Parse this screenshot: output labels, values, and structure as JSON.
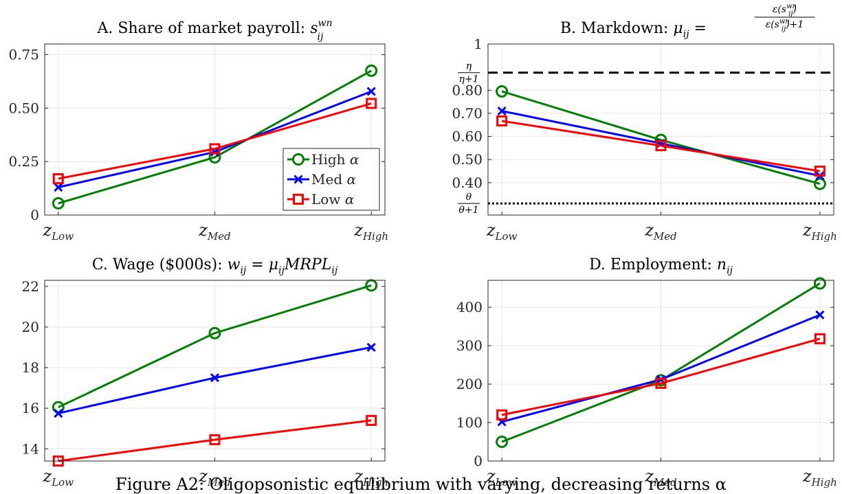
{
  "caption": "Figure A2: Oligopsonistic equilibrium with varying, decreasing returns α",
  "chart_data": [
    {
      "id": "A",
      "type": "line",
      "title": "A. Share of market payroll: s",
      "title_sup": "wn",
      "title_sub": "ij",
      "categories": [
        {
          "base": "z",
          "sub": "Low"
        },
        {
          "base": "z",
          "sub": "Med"
        },
        {
          "base": "z",
          "sub": "High"
        }
      ],
      "ylim": [
        0,
        0.8
      ],
      "yticks": [
        0,
        0.25,
        0.5,
        0.75
      ],
      "ytick_labels": [
        "0",
        "0.25",
        "0.50",
        "0.75"
      ],
      "grid": true,
      "legend": {
        "placement": "lower-right",
        "entries": [
          {
            "base": "High ",
            "greek": "α",
            "series": 0
          },
          {
            "base": "Med ",
            "greek": "α",
            "series": 1
          },
          {
            "base": "Low ",
            "greek": "α",
            "series": 2
          }
        ]
      },
      "series": [
        {
          "name": "High α",
          "color": "#008000",
          "marker": "circle",
          "values": [
            0.055,
            0.27,
            0.675
          ]
        },
        {
          "name": "Med α",
          "color": "#0000ff",
          "marker": "x",
          "values": [
            0.13,
            0.295,
            0.578
          ]
        },
        {
          "name": "Low α",
          "color": "#ff0000",
          "marker": "square",
          "values": [
            0.17,
            0.31,
            0.522
          ]
        }
      ]
    },
    {
      "id": "B",
      "type": "line",
      "title": "B. Markdown: μ",
      "title_sub": "ij",
      "title_eq": "=",
      "title_frac_num": "ε(s",
      "title_frac_num_sup": "wn",
      "title_frac_num_sub": "ij",
      "title_frac_num_end": ")",
      "title_frac_den": "ε(s",
      "title_frac_den_sup": "wn",
      "title_frac_den_sub": "ij",
      "title_frac_den_end": ")+1",
      "categories": [
        {
          "base": "z",
          "sub": "Low"
        },
        {
          "base": "z",
          "sub": "Med"
        },
        {
          "base": "z",
          "sub": "High"
        }
      ],
      "ylim": [
        0.26,
        1.0
      ],
      "yticks": [
        0.4,
        0.5,
        0.6,
        0.7,
        0.8,
        1.0
      ],
      "ytick_labels": [
        "0.40",
        "0.50",
        "0.60",
        "0.70",
        "0.80",
        "1"
      ],
      "grid": true,
      "hlines": [
        {
          "value": 0.876,
          "style": "dashed",
          "label_num": "η",
          "label_den": "η+1"
        },
        {
          "value": 0.31,
          "style": "dotted",
          "label_num": "θ",
          "label_den": "θ+1"
        }
      ],
      "series": [
        {
          "name": "High α",
          "color": "#008000",
          "marker": "circle",
          "values": [
            0.795,
            0.585,
            0.395
          ]
        },
        {
          "name": "Med α",
          "color": "#0000ff",
          "marker": "x",
          "values": [
            0.71,
            0.57,
            0.43
          ]
        },
        {
          "name": "Low α",
          "color": "#ff0000",
          "marker": "square",
          "values": [
            0.667,
            0.56,
            0.45
          ]
        }
      ]
    },
    {
      "id": "C",
      "type": "line",
      "title": "C. Wage ($000s): w",
      "title_sub": "ij",
      "title_eq": " = μ",
      "title_sub2": "ij",
      "title_tail": "MRPL",
      "title_sub3": "ij",
      "categories": [
        {
          "base": "z",
          "sub": "Low"
        },
        {
          "base": "z",
          "sub": "Med"
        },
        {
          "base": "z",
          "sub": "High"
        }
      ],
      "ylim": [
        13.4,
        22.3
      ],
      "yticks": [
        14,
        16,
        18,
        20,
        22
      ],
      "ytick_labels": [
        "14",
        "16",
        "18",
        "20",
        "22"
      ],
      "grid": true,
      "series": [
        {
          "name": "High α",
          "color": "#008000",
          "marker": "circle",
          "values": [
            16.05,
            19.7,
            22.05
          ]
        },
        {
          "name": "Med α",
          "color": "#0000ff",
          "marker": "x",
          "values": [
            15.75,
            17.5,
            19.0
          ]
        },
        {
          "name": "Low α",
          "color": "#ff0000",
          "marker": "square",
          "values": [
            13.4,
            14.45,
            15.4
          ]
        }
      ]
    },
    {
      "id": "D",
      "type": "line",
      "title": "D. Employment: n",
      "title_sub": "ij",
      "categories": [
        {
          "base": "z",
          "sub": "Low"
        },
        {
          "base": "z",
          "sub": "Med"
        },
        {
          "base": "z",
          "sub": "High"
        }
      ],
      "ylim": [
        0,
        470
      ],
      "yticks": [
        0,
        100,
        200,
        300,
        400
      ],
      "ytick_labels": [
        "0",
        "100",
        "200",
        "300",
        "400"
      ],
      "grid": true,
      "series": [
        {
          "name": "High α",
          "color": "#008000",
          "marker": "circle",
          "values": [
            50,
            210,
            462
          ]
        },
        {
          "name": "Med α",
          "color": "#0000ff",
          "marker": "x",
          "values": [
            102,
            212,
            380
          ]
        },
        {
          "name": "Low α",
          "color": "#ff0000",
          "marker": "square",
          "values": [
            120,
            202,
            318
          ]
        }
      ]
    }
  ]
}
